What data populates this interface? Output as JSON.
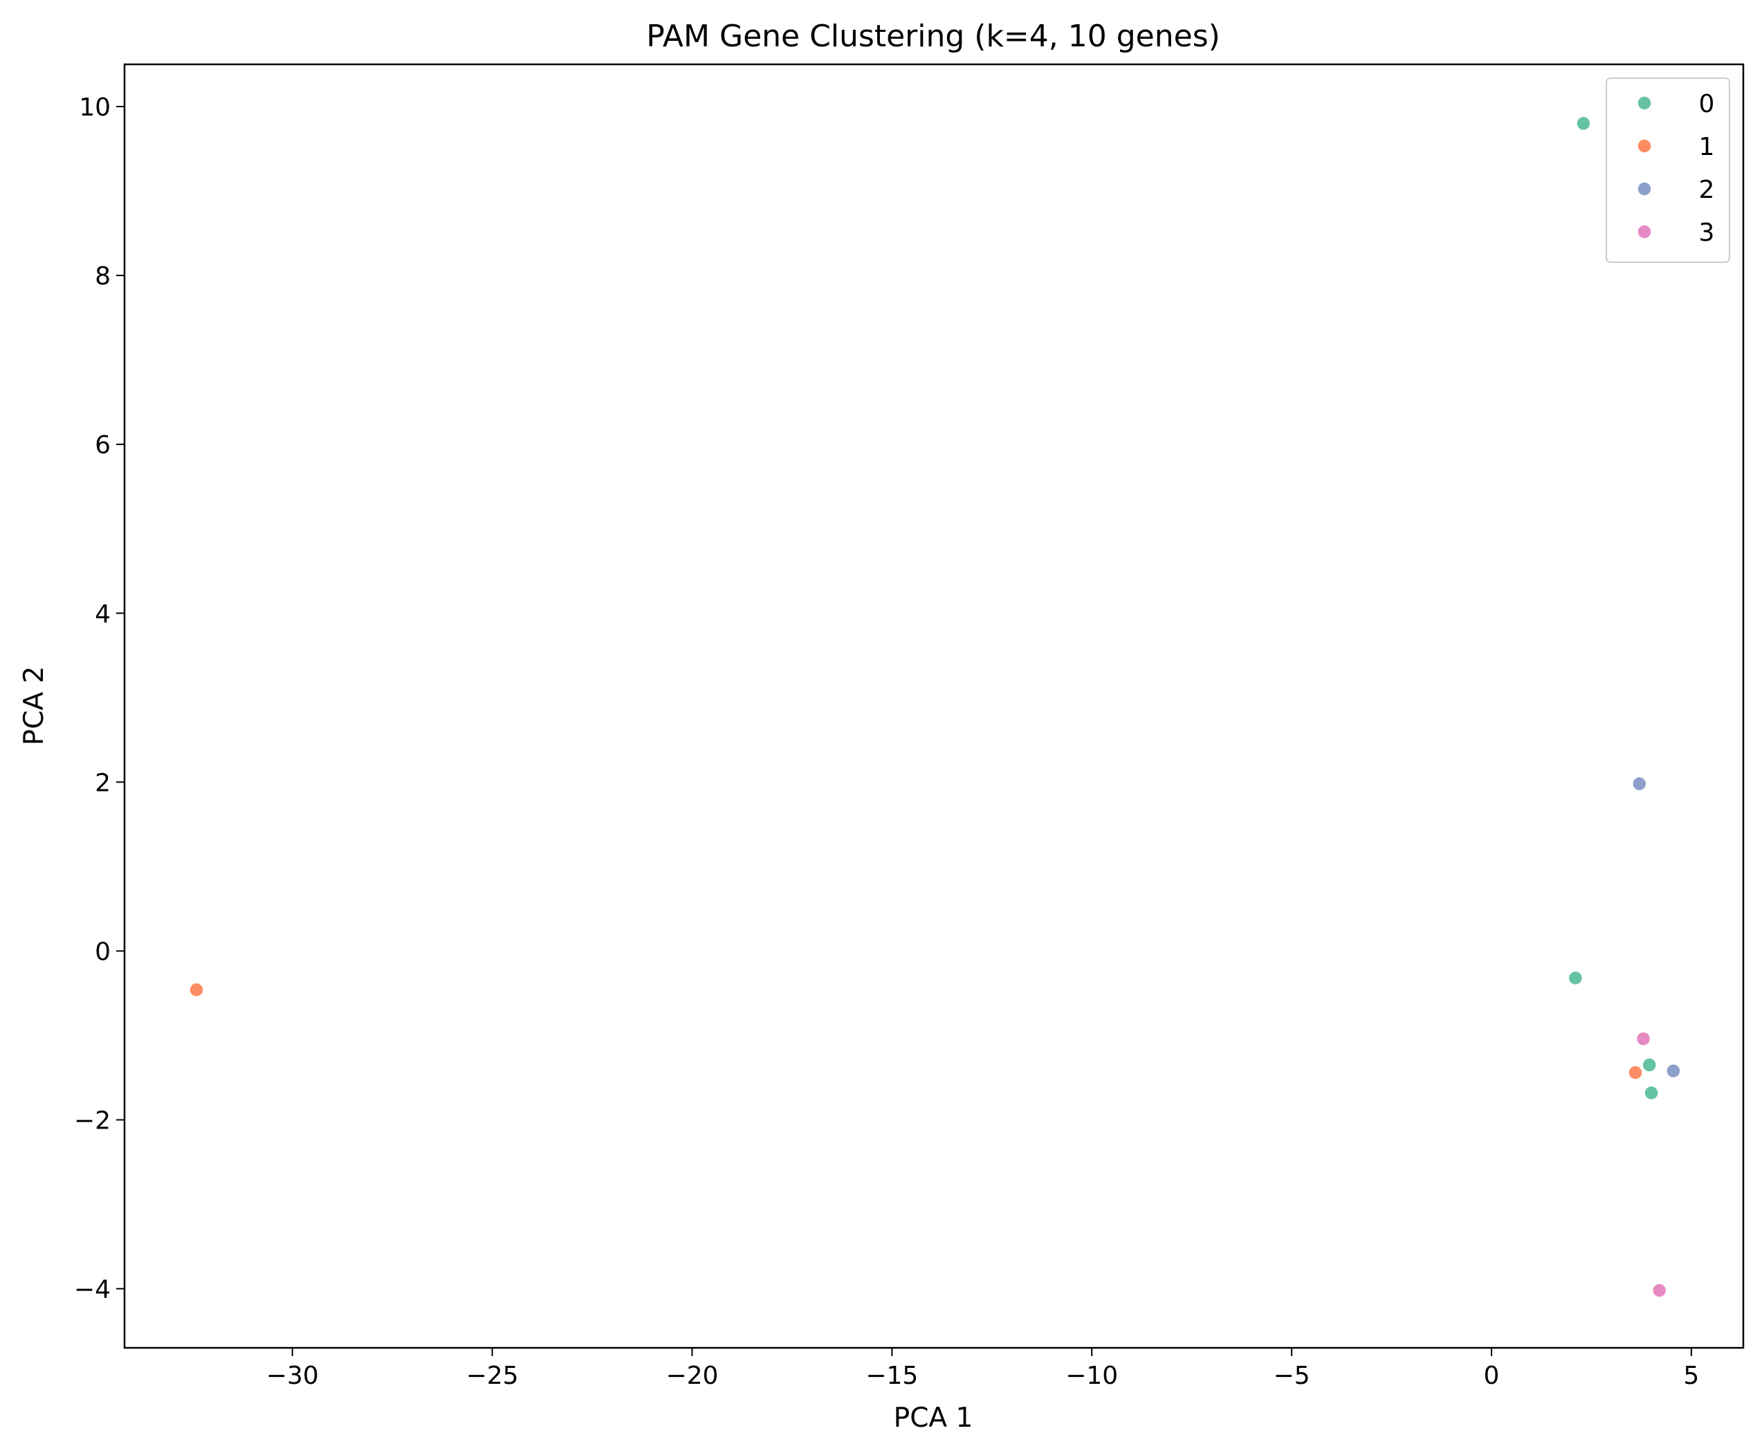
{
  "chart_data": {
    "type": "scatter",
    "title": "PAM Gene Clustering (k=4, 10 genes)",
    "xlabel": "PCA 1",
    "ylabel": "PCA 2",
    "xlim": [
      -34.2,
      6.3
    ],
    "ylim": [
      -4.7,
      10.5
    ],
    "xticks": [
      -30,
      -25,
      -20,
      -15,
      -10,
      -5,
      0,
      5
    ],
    "yticks": [
      -4,
      -2,
      0,
      2,
      4,
      6,
      8,
      10
    ],
    "xtick_labels": [
      "−30",
      "−25",
      "−20",
      "−15",
      "−10",
      "−5",
      "0",
      "5"
    ],
    "ytick_labels": [
      "−4",
      "−2",
      "0",
      "2",
      "4",
      "6",
      "8",
      "10"
    ],
    "grid": false,
    "legend_position": "top-right",
    "series": [
      {
        "name": "0",
        "color": "#66c2a5",
        "points": [
          [
            2.3,
            9.8
          ],
          [
            2.1,
            -0.32
          ],
          [
            3.95,
            -1.35
          ],
          [
            4.0,
            -1.68
          ]
        ]
      },
      {
        "name": "1",
        "color": "#fc8d62",
        "points": [
          [
            -32.4,
            -0.46
          ],
          [
            3.6,
            -1.44
          ]
        ]
      },
      {
        "name": "2",
        "color": "#8da0cb",
        "points": [
          [
            3.7,
            1.98
          ],
          [
            4.55,
            -1.42
          ]
        ]
      },
      {
        "name": "3",
        "color": "#e78ac3",
        "points": [
          [
            3.8,
            -1.04
          ],
          [
            4.2,
            -4.02
          ]
        ]
      }
    ]
  }
}
